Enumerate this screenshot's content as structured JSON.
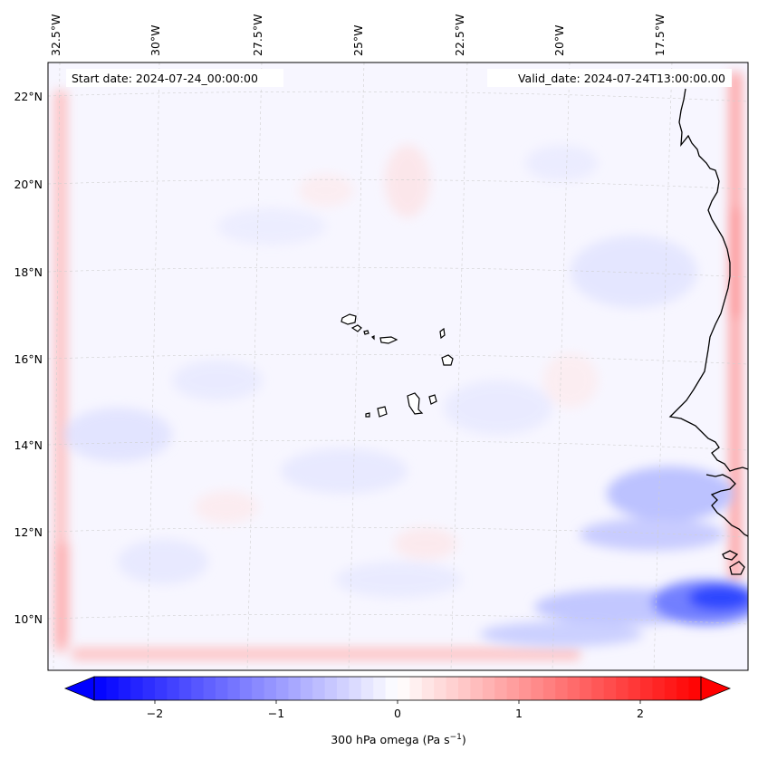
{
  "map": {
    "start_date": "Start date: 2024-07-24_00:00:00",
    "valid_date": "Valid_date: 2024-07-24T13:00:00.00",
    "lon_labels": [
      "32.5°W",
      "30°W",
      "27.5°W",
      "25°W",
      "22.5°W",
      "20°W",
      "17.5°W"
    ],
    "lat_labels": [
      "22°N",
      "20°N",
      "18°N",
      "16°N",
      "14°N",
      "12°N",
      "10°N"
    ],
    "lon_range": [
      -33.2,
      -15.2
    ],
    "lat_range": [
      8.9,
      22.8
    ],
    "features": [
      "cabo-verde-islands",
      "west-african-coastline"
    ]
  },
  "colorbar": {
    "label": "300 hPa omega (Pa s",
    "label_superscript": "−1",
    "label_close": ")",
    "ticks": [
      "−2",
      "−1",
      "0",
      "1",
      "2"
    ],
    "tick_values": [
      -2,
      -1,
      0,
      1,
      2
    ],
    "range": [
      -2.5,
      2.5
    ],
    "colors": {
      "low": "#0000ff",
      "mid": "#ffffff",
      "high": "#ff0000"
    }
  }
}
